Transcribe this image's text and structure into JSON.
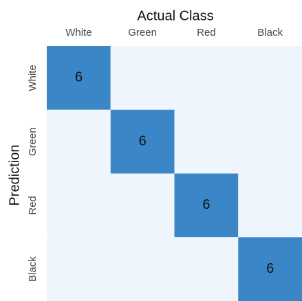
{
  "chart_data": {
    "type": "heatmap",
    "title": "Actual Class",
    "ylabel": "Prediction",
    "x": [
      "White",
      "Green",
      "Red",
      "Black"
    ],
    "y": [
      "White",
      "Green",
      "Red",
      "Black"
    ],
    "values": [
      [
        6,
        0,
        0,
        0
      ],
      [
        0,
        6,
        0,
        0
      ],
      [
        0,
        0,
        6,
        0
      ],
      [
        0,
        0,
        0,
        6
      ]
    ],
    "value_labels": [
      [
        "6",
        null,
        null,
        null
      ],
      [
        null,
        "6",
        null,
        null
      ],
      [
        null,
        null,
        "6",
        null
      ],
      [
        null,
        null,
        null,
        "6"
      ]
    ],
    "colors": [
      "#eff5fc",
      "#3a86c6"
    ]
  }
}
